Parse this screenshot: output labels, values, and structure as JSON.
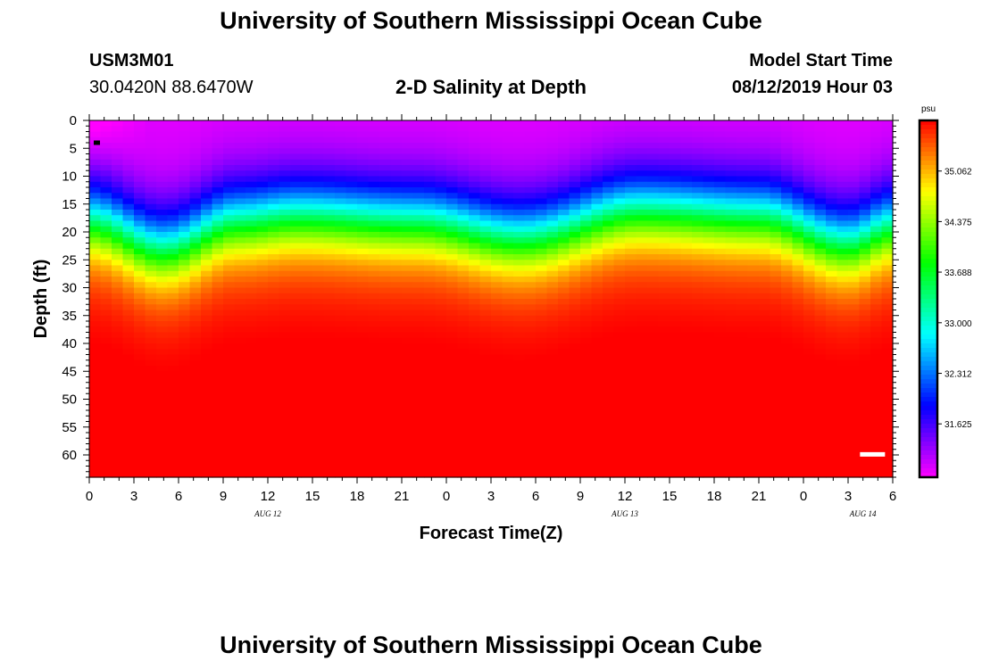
{
  "header": {
    "title": "University of Southern Mississippi Ocean Cube",
    "station_id": "USM3M01",
    "coordinates": "30.0420N 88.6470W",
    "plot_title": "2-D Salinity at Depth",
    "model_start_label": "Model Start Time",
    "model_start_value": "08/12/2019 Hour 03"
  },
  "footer": {
    "title": "University of Southern Mississippi Ocean Cube"
  },
  "chart_data": {
    "type": "heatmap",
    "title": "2-D Salinity at Depth",
    "xlabel": "Forecast Time(Z)",
    "ylabel": "Depth (ft)",
    "x_tick_labels": [
      "0",
      "3",
      "6",
      "9",
      "12",
      "15",
      "18",
      "21",
      "0",
      "3",
      "6",
      "9",
      "12",
      "15",
      "18",
      "21",
      "0",
      "3",
      "6"
    ],
    "x_hours_range": [
      0,
      54
    ],
    "date_labels": [
      {
        "text": "AUG 12",
        "hour": 12
      },
      {
        "text": "AUG 13",
        "hour": 36
      },
      {
        "text": "AUG 14",
        "hour": 52
      }
    ],
    "y_tick_labels": [
      "0",
      "5",
      "10",
      "15",
      "20",
      "25",
      "30",
      "35",
      "40",
      "45",
      "50",
      "55",
      "60"
    ],
    "ylim": [
      0,
      64
    ],
    "colorbar": {
      "unit": "psu",
      "range": [
        30.9,
        35.75
      ],
      "tick_labels": [
        "35.062",
        "34.375",
        "33.688",
        "33.000",
        "32.312",
        "31.625"
      ],
      "tick_values": [
        35.062,
        34.375,
        33.688,
        33.0,
        32.312,
        31.625
      ]
    },
    "field_description": "Salinity increases with depth: ~31 psu at surface to ~35.7 psu near bottom; halocline oscillates between ~12 and ~32 ft with minima near hours 5, 29 and 51.",
    "halocline_center_ft": [
      {
        "hour": 0,
        "depth": 18
      },
      {
        "hour": 5,
        "depth": 23
      },
      {
        "hour": 10,
        "depth": 18
      },
      {
        "hour": 14,
        "depth": 17
      },
      {
        "hour": 22,
        "depth": 18
      },
      {
        "hour": 29,
        "depth": 21
      },
      {
        "hour": 37,
        "depth": 16
      },
      {
        "hour": 45,
        "depth": 17
      },
      {
        "hour": 51,
        "depth": 22
      },
      {
        "hour": 54,
        "depth": 19
      }
    ]
  },
  "colors": {
    "background": "#ffffff",
    "text": "#000000"
  }
}
